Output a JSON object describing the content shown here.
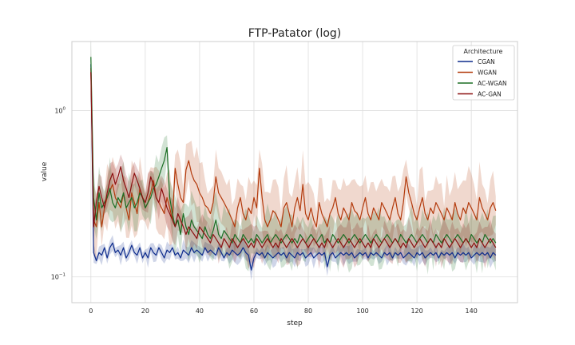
{
  "chart_data": {
    "type": "line",
    "title": "FTP-Patator (log)",
    "xlabel": "step",
    "ylabel": "value",
    "xlim": [
      -7,
      157
    ],
    "ylim": [
      0.07,
      2.6
    ],
    "yscale": "log",
    "grid": true,
    "x_ticks": [
      0,
      20,
      40,
      60,
      80,
      100,
      120,
      140
    ],
    "y_ticks": [
      {
        "value": 1.0,
        "base": "10",
        "exp": "0"
      },
      {
        "value": 0.1,
        "base": "10",
        "exp": "−1"
      }
    ],
    "legend": {
      "title": "Architecture",
      "position": "top-right"
    },
    "x": [
      0,
      1,
      2,
      3,
      4,
      5,
      6,
      7,
      8,
      9,
      10,
      11,
      12,
      13,
      14,
      15,
      16,
      17,
      18,
      19,
      20,
      21,
      22,
      23,
      24,
      25,
      26,
      27,
      28,
      29,
      30,
      31,
      32,
      33,
      34,
      35,
      36,
      37,
      38,
      39,
      40,
      41,
      42,
      43,
      44,
      45,
      46,
      47,
      48,
      49,
      50,
      51,
      52,
      53,
      54,
      55,
      56,
      57,
      58,
      59,
      60,
      61,
      62,
      63,
      64,
      65,
      66,
      67,
      68,
      69,
      70,
      71,
      72,
      73,
      74,
      75,
      76,
      77,
      78,
      79,
      80,
      81,
      82,
      83,
      84,
      85,
      86,
      87,
      88,
      89,
      90,
      91,
      92,
      93,
      94,
      95,
      96,
      97,
      98,
      99,
      100,
      101,
      102,
      103,
      104,
      105,
      106,
      107,
      108,
      109,
      110,
      111,
      112,
      113,
      114,
      115,
      116,
      117,
      118,
      119,
      120,
      121,
      122,
      123,
      124,
      125,
      126,
      127,
      128,
      129,
      130,
      131,
      132,
      133,
      134,
      135,
      136,
      137,
      138,
      139,
      140,
      141,
      142,
      143,
      144,
      145,
      146,
      147,
      148,
      149
    ],
    "series": [
      {
        "name": "CGAN",
        "color": "#0d2b8c",
        "values": [
          1.9,
          0.14,
          0.125,
          0.14,
          0.135,
          0.15,
          0.13,
          0.15,
          0.16,
          0.14,
          0.145,
          0.135,
          0.15,
          0.13,
          0.14,
          0.155,
          0.14,
          0.135,
          0.15,
          0.13,
          0.14,
          0.13,
          0.15,
          0.14,
          0.135,
          0.15,
          0.14,
          0.13,
          0.145,
          0.14,
          0.15,
          0.135,
          0.14,
          0.13,
          0.145,
          0.14,
          0.135,
          0.15,
          0.14,
          0.145,
          0.14,
          0.135,
          0.15,
          0.14,
          0.145,
          0.14,
          0.135,
          0.15,
          0.14,
          0.13,
          0.14,
          0.135,
          0.145,
          0.14,
          0.135,
          0.14,
          0.15,
          0.14,
          0.135,
          0.11,
          0.13,
          0.14,
          0.135,
          0.14,
          0.13,
          0.14,
          0.135,
          0.13,
          0.135,
          0.14,
          0.135,
          0.14,
          0.13,
          0.14,
          0.135,
          0.13,
          0.14,
          0.135,
          0.14,
          0.13,
          0.135,
          0.14,
          0.13,
          0.135,
          0.14,
          0.135,
          0.14,
          0.115,
          0.135,
          0.14,
          0.13,
          0.135,
          0.14,
          0.135,
          0.14,
          0.135,
          0.14,
          0.13,
          0.135,
          0.14,
          0.135,
          0.14,
          0.13,
          0.14,
          0.135,
          0.14,
          0.135,
          0.13,
          0.14,
          0.135,
          0.14,
          0.13,
          0.14,
          0.135,
          0.14,
          0.13,
          0.135,
          0.14,
          0.135,
          0.13,
          0.14,
          0.135,
          0.14,
          0.13,
          0.135,
          0.14,
          0.135,
          0.14,
          0.13,
          0.14,
          0.135,
          0.14,
          0.135,
          0.14,
          0.13,
          0.14,
          0.135,
          0.14,
          0.135,
          0.14,
          0.13,
          0.135,
          0.14,
          0.135,
          0.14,
          0.135,
          0.14,
          0.13,
          0.14,
          0.135
        ]
      },
      {
        "name": "WGAN",
        "color": "#b33a0c",
        "values": [
          1.8,
          0.22,
          0.2,
          0.28,
          0.2,
          0.26,
          0.3,
          0.33,
          0.36,
          0.3,
          0.28,
          0.26,
          0.32,
          0.26,
          0.22,
          0.32,
          0.28,
          0.24,
          0.34,
          0.3,
          0.26,
          0.28,
          0.32,
          0.38,
          0.3,
          0.28,
          0.26,
          0.24,
          0.3,
          0.26,
          0.22,
          0.45,
          0.36,
          0.3,
          0.28,
          0.44,
          0.5,
          0.42,
          0.38,
          0.36,
          0.32,
          0.3,
          0.27,
          0.26,
          0.24,
          0.28,
          0.4,
          0.32,
          0.3,
          0.28,
          0.26,
          0.24,
          0.22,
          0.2,
          0.26,
          0.3,
          0.24,
          0.22,
          0.26,
          0.24,
          0.3,
          0.26,
          0.45,
          0.3,
          0.22,
          0.2,
          0.22,
          0.25,
          0.24,
          0.22,
          0.2,
          0.26,
          0.28,
          0.24,
          0.2,
          0.26,
          0.3,
          0.25,
          0.36,
          0.24,
          0.22,
          0.26,
          0.22,
          0.2,
          0.28,
          0.24,
          0.22,
          0.2,
          0.24,
          0.26,
          0.3,
          0.24,
          0.22,
          0.26,
          0.24,
          0.22,
          0.28,
          0.25,
          0.24,
          0.22,
          0.26,
          0.3,
          0.24,
          0.22,
          0.26,
          0.24,
          0.22,
          0.28,
          0.26,
          0.24,
          0.22,
          0.26,
          0.3,
          0.24,
          0.22,
          0.28,
          0.4,
          0.32,
          0.28,
          0.24,
          0.22,
          0.26,
          0.3,
          0.24,
          0.22,
          0.26,
          0.24,
          0.28,
          0.26,
          0.24,
          0.22,
          0.26,
          0.24,
          0.22,
          0.28,
          0.24,
          0.22,
          0.26,
          0.24,
          0.28,
          0.26,
          0.24,
          0.22,
          0.3,
          0.26,
          0.24,
          0.22,
          0.26,
          0.28,
          0.25
        ]
      },
      {
        "name": "AC-WGAN",
        "color": "#1b6e24",
        "values": [
          2.1,
          0.3,
          0.22,
          0.32,
          0.26,
          0.28,
          0.3,
          0.34,
          0.28,
          0.26,
          0.3,
          0.28,
          0.32,
          0.26,
          0.28,
          0.3,
          0.26,
          0.28,
          0.32,
          0.3,
          0.26,
          0.28,
          0.3,
          0.34,
          0.36,
          0.4,
          0.45,
          0.5,
          0.6,
          0.3,
          0.24,
          0.2,
          0.22,
          0.18,
          0.24,
          0.2,
          0.18,
          0.22,
          0.2,
          0.19,
          0.18,
          0.17,
          0.2,
          0.18,
          0.17,
          0.19,
          0.22,
          0.18,
          0.17,
          0.19,
          0.18,
          0.17,
          0.16,
          0.18,
          0.17,
          0.16,
          0.18,
          0.17,
          0.16,
          0.17,
          0.16,
          0.18,
          0.17,
          0.16,
          0.17,
          0.18,
          0.16,
          0.17,
          0.18,
          0.17,
          0.16,
          0.17,
          0.18,
          0.17,
          0.16,
          0.17,
          0.16,
          0.18,
          0.17,
          0.16,
          0.17,
          0.18,
          0.17,
          0.16,
          0.17,
          0.18,
          0.16,
          0.17,
          0.16,
          0.18,
          0.17,
          0.16,
          0.17,
          0.18,
          0.17,
          0.16,
          0.17,
          0.18,
          0.17,
          0.16,
          0.17,
          0.18,
          0.17,
          0.16,
          0.17,
          0.18,
          0.17,
          0.16,
          0.17,
          0.18,
          0.17,
          0.16,
          0.17,
          0.16,
          0.18,
          0.17,
          0.16,
          0.17,
          0.18,
          0.17,
          0.16,
          0.17,
          0.18,
          0.17,
          0.16,
          0.17,
          0.16,
          0.18,
          0.17,
          0.16,
          0.17,
          0.18,
          0.17,
          0.16,
          0.17,
          0.18,
          0.17,
          0.16,
          0.17,
          0.16,
          0.18,
          0.17,
          0.16,
          0.17,
          0.16,
          0.18,
          0.17,
          0.16,
          0.17,
          0.16
        ]
      },
      {
        "name": "AC-GAN",
        "color": "#8b1010",
        "values": [
          1.7,
          0.2,
          0.28,
          0.35,
          0.3,
          0.26,
          0.32,
          0.38,
          0.42,
          0.36,
          0.4,
          0.46,
          0.38,
          0.34,
          0.3,
          0.36,
          0.42,
          0.38,
          0.34,
          0.3,
          0.28,
          0.32,
          0.4,
          0.36,
          0.3,
          0.28,
          0.34,
          0.3,
          0.26,
          0.24,
          0.22,
          0.2,
          0.24,
          0.22,
          0.2,
          0.18,
          0.2,
          0.19,
          0.18,
          0.17,
          0.2,
          0.19,
          0.18,
          0.17,
          0.16,
          0.18,
          0.17,
          0.16,
          0.15,
          0.17,
          0.16,
          0.15,
          0.17,
          0.16,
          0.15,
          0.16,
          0.17,
          0.16,
          0.15,
          0.16,
          0.15,
          0.17,
          0.16,
          0.15,
          0.16,
          0.17,
          0.16,
          0.15,
          0.16,
          0.15,
          0.17,
          0.16,
          0.15,
          0.16,
          0.17,
          0.16,
          0.15,
          0.16,
          0.17,
          0.16,
          0.15,
          0.16,
          0.17,
          0.16,
          0.15,
          0.16,
          0.15,
          0.17,
          0.16,
          0.15,
          0.16,
          0.17,
          0.16,
          0.15,
          0.16,
          0.17,
          0.16,
          0.15,
          0.16,
          0.17,
          0.16,
          0.15,
          0.16,
          0.15,
          0.17,
          0.16,
          0.15,
          0.16,
          0.17,
          0.16,
          0.15,
          0.16,
          0.17,
          0.16,
          0.15,
          0.16,
          0.15,
          0.17,
          0.16,
          0.15,
          0.16,
          0.17,
          0.16,
          0.15,
          0.16,
          0.17,
          0.16,
          0.15,
          0.16,
          0.15,
          0.17,
          0.16,
          0.15,
          0.16,
          0.17,
          0.16,
          0.15,
          0.16,
          0.17,
          0.16,
          0.15,
          0.16,
          0.15,
          0.17,
          0.16,
          0.15,
          0.16,
          0.17,
          0.16,
          0.15
        ]
      }
    ]
  }
}
